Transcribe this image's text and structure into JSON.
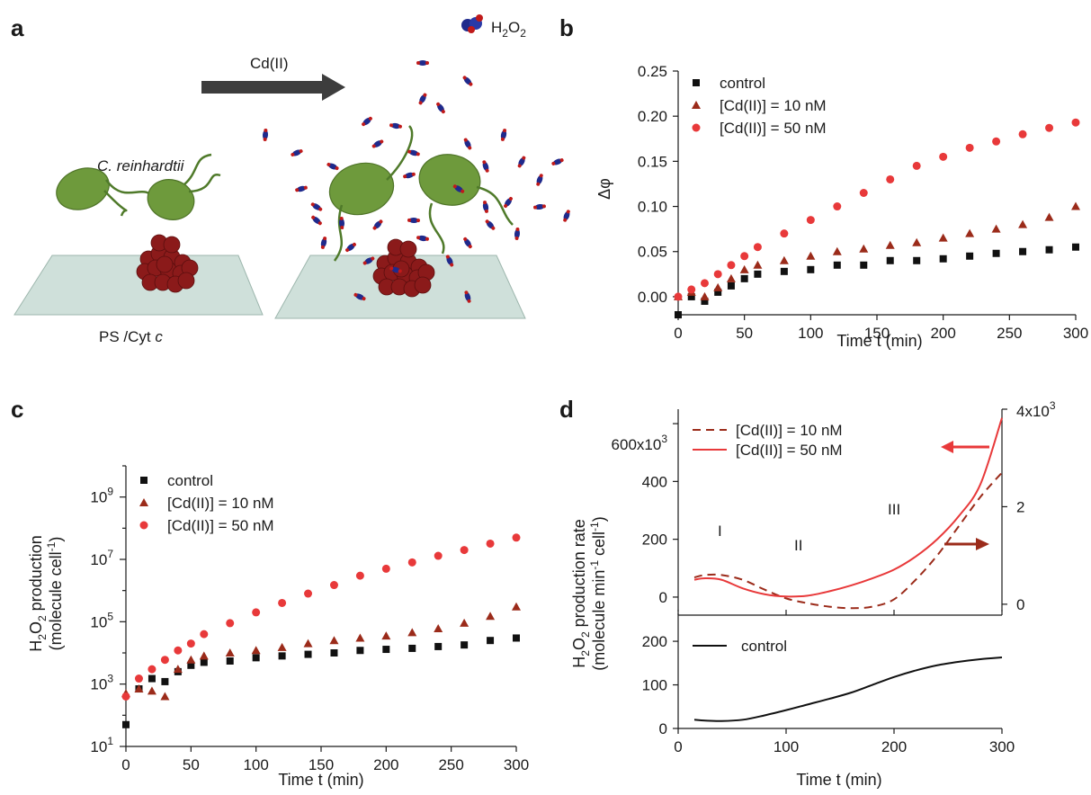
{
  "panel_labels": [
    "a",
    "b",
    "c",
    "d"
  ],
  "panel_a": {
    "arrow_label": "Cd(II)",
    "organism_label": "C. reinhardtii",
    "substrate_label_main": "PS /Cyt ",
    "substrate_label_italic": "c",
    "molecule_label_main": "H",
    "molecule_sub1": "2",
    "molecule_mid": "O",
    "molecule_sub2": "2",
    "colors": {
      "alga": "#6e9a3c",
      "protein": "#8b1a1a",
      "slide": "#cfe0da",
      "arrow": "#3d3d3d",
      "h2o2_blue": "#1f2a8c",
      "h2o2_red": "#c01a1a"
    }
  },
  "colors": {
    "control": "#111111",
    "cd10": "#9b2b1a",
    "cd50": "#e8393a"
  },
  "chart_data": [
    {
      "panel": "b",
      "type": "scatter",
      "xlabel": "Time t (min)",
      "ylabel": "Δφ",
      "xlim": [
        0,
        300
      ],
      "ylim": [
        -0.02,
        0.25
      ],
      "xticks": [
        0,
        50,
        100,
        150,
        200,
        250,
        300
      ],
      "yticks": [
        0.0,
        0.05,
        0.1,
        0.15,
        0.2,
        0.25
      ],
      "ytick_labels": [
        "0.00",
        "0.05",
        "0.10",
        "0.15",
        "0.20",
        "0.25"
      ],
      "legend": "top-left",
      "series": [
        {
          "name": "control",
          "marker": "square",
          "x": [
            0,
            10,
            20,
            30,
            40,
            50,
            60,
            80,
            100,
            120,
            140,
            160,
            180,
            200,
            220,
            240,
            260,
            280,
            300
          ],
          "y": [
            -0.02,
            0.0,
            -0.005,
            0.005,
            0.012,
            0.02,
            0.025,
            0.028,
            0.03,
            0.035,
            0.035,
            0.04,
            0.04,
            0.042,
            0.045,
            0.048,
            0.05,
            0.052,
            0.055
          ]
        },
        {
          "name": "[Cd(II)] = 10 nM",
          "marker": "triangle",
          "x": [
            0,
            10,
            20,
            30,
            40,
            50,
            60,
            80,
            100,
            120,
            140,
            160,
            180,
            200,
            220,
            240,
            260,
            280,
            300
          ],
          "y": [
            0.0,
            0.005,
            0.0,
            0.01,
            0.02,
            0.03,
            0.035,
            0.04,
            0.045,
            0.05,
            0.053,
            0.057,
            0.06,
            0.065,
            0.07,
            0.075,
            0.08,
            0.088,
            0.1
          ]
        },
        {
          "name": "[Cd(II)] = 50 nM",
          "marker": "circle",
          "x": [
            0,
            10,
            20,
            30,
            40,
            50,
            60,
            80,
            100,
            120,
            140,
            160,
            180,
            200,
            220,
            240,
            260,
            280,
            300
          ],
          "y": [
            0.0,
            0.008,
            0.015,
            0.025,
            0.035,
            0.045,
            0.055,
            0.07,
            0.085,
            0.1,
            0.115,
            0.13,
            0.145,
            0.155,
            0.165,
            0.172,
            0.18,
            0.187,
            0.193
          ]
        }
      ]
    },
    {
      "panel": "c",
      "type": "scatter",
      "xlabel": "Time t (min)",
      "ylabel_line1_main": "H",
      "ylabel_line1_sub1": "2",
      "ylabel_line1_mid": "O",
      "ylabel_line1_sub2": "2",
      "ylabel_line1_rest": " production",
      "ylabel_line2_main": "(molecule cell",
      "ylabel_line2_sup": "-1",
      "ylabel_line2_end": ")",
      "xlim": [
        0,
        300
      ],
      "ylim_log10": [
        1,
        10
      ],
      "yscale": "log",
      "xticks": [
        0,
        50,
        100,
        150,
        200,
        250,
        300
      ],
      "yticks_log10": [
        1,
        3,
        5,
        7,
        9
      ],
      "ytick_base": "10",
      "ytick_exps": [
        "1",
        "3",
        "5",
        "7",
        "9"
      ],
      "legend": "top-left",
      "series": [
        {
          "name": "control",
          "marker": "square",
          "x": [
            0,
            10,
            20,
            30,
            40,
            50,
            60,
            80,
            100,
            120,
            140,
            160,
            180,
            200,
            220,
            240,
            260,
            280,
            300
          ],
          "y": [
            50,
            700,
            1500,
            1200,
            2500,
            4000,
            5000,
            5500,
            7000,
            8000,
            9000,
            10000,
            12000,
            13000,
            14000,
            16000,
            18000,
            25000,
            30000
          ]
        },
        {
          "name": "[Cd(II)] = 10 nM",
          "marker": "triangle",
          "x": [
            0,
            10,
            20,
            30,
            40,
            50,
            60,
            80,
            100,
            120,
            140,
            160,
            180,
            200,
            220,
            240,
            260,
            280,
            300
          ],
          "y": [
            500,
            700,
            600,
            400,
            3000,
            6000,
            8000,
            10000,
            12000,
            15000,
            20000,
            25000,
            30000,
            35000,
            45000,
            60000,
            90000,
            150000,
            300000
          ]
        },
        {
          "name": "[Cd(II)] = 50 nM",
          "marker": "circle",
          "x": [
            0,
            10,
            20,
            30,
            40,
            50,
            60,
            80,
            100,
            120,
            140,
            160,
            180,
            200,
            220,
            240,
            260,
            280,
            300
          ],
          "y": [
            400,
            1500,
            3000,
            6000,
            12000,
            20000,
            40000,
            90000,
            200000,
            400000,
            800000,
            1500000,
            3000000,
            5000000,
            8000000,
            13000000,
            20000000,
            32000000,
            50000000
          ]
        }
      ]
    },
    {
      "panel": "d",
      "type": "line",
      "xlabel": "Time t (min)",
      "ylabel_line1_main": "H",
      "ylabel_line1_sub1": "2",
      "ylabel_line1_mid": "O",
      "ylabel_line1_sub2": "2",
      "ylabel_line1_rest": " production rate",
      "ylabel_line2_main": "(molecule min",
      "ylabel_line2_sup1": "-1",
      "ylabel_line2_mid": " cell",
      "ylabel_line2_sup2": "-1",
      "ylabel_line2_end": ")",
      "xlim": [
        0,
        300
      ],
      "xticks": [
        0,
        100,
        200,
        300
      ],
      "upper": {
        "left_ylim": [
          -50,
          650
        ],
        "left_yticks": [
          0,
          200,
          400,
          600
        ],
        "left_top_tick_label": "600x10",
        "left_top_tick_sup": "3",
        "left_ytick_labels": [
          "0",
          "200",
          "400"
        ],
        "right_ylim": [
          -0.15,
          4.0
        ],
        "right_yticks": [
          0,
          2,
          4
        ],
        "right_top_tick_label": "4x10",
        "right_top_tick_sup": "3",
        "right_ytick_labels": [
          "0",
          "2"
        ],
        "legend": "top-left",
        "annotations": [
          "I",
          "II",
          "III"
        ],
        "series": [
          {
            "name": "[Cd(II)] = 10 nM",
            "style": "dashed",
            "axis": "right",
            "x": [
              15,
              25,
              40,
              60,
              80,
              100,
              120,
              140,
              160,
              180,
              200,
              220,
              240,
              260,
              280,
              300
            ],
            "y": [
              0.55,
              0.6,
              0.6,
              0.5,
              0.3,
              0.12,
              0.02,
              -0.05,
              -0.08,
              -0.05,
              0.1,
              0.5,
              1.0,
              1.6,
              2.2,
              2.7
            ]
          },
          {
            "name": "[Cd(II)] = 50 nM",
            "style": "solid",
            "axis": "left",
            "x": [
              15,
              25,
              40,
              60,
              80,
              100,
              120,
              140,
              160,
              180,
              200,
              220,
              240,
              260,
              280,
              300
            ],
            "y": [
              60,
              65,
              60,
              30,
              10,
              2,
              5,
              20,
              40,
              65,
              95,
              140,
              200,
              280,
              390,
              620
            ]
          }
        ]
      },
      "lower": {
        "ylim": [
          0,
          260
        ],
        "yticks": [
          0,
          100,
          200
        ],
        "legend": "top-left",
        "series": [
          {
            "name": "control",
            "style": "solid",
            "axis": "left",
            "x": [
              15,
              25,
              40,
              60,
              80,
              100,
              120,
              140,
              160,
              180,
              200,
              220,
              240,
              260,
              280,
              300
            ],
            "y": [
              20,
              18,
              17,
              20,
              30,
              42,
              55,
              68,
              82,
              100,
              118,
              133,
              145,
              153,
              159,
              163
            ]
          }
        ]
      }
    }
  ]
}
